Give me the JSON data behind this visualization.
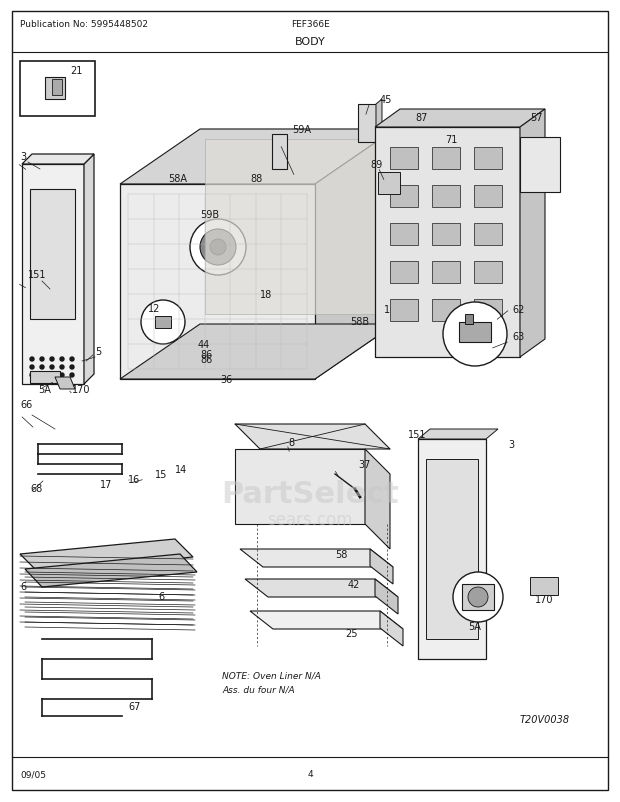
{
  "title": "BODY",
  "pub_no": "Publication No: 5995448502",
  "model": "FEF366E",
  "date": "09/05",
  "page": "4",
  "ref_code": "T20V0038",
  "fig_width": 6.2,
  "fig_height": 8.03,
  "dpi": 100,
  "bg_color": "#ffffff",
  "border_color": "#000000",
  "text_color": "#000000",
  "note_text": "NOTE: Oven Liner N/A\nAss. du four N/A",
  "watermark1": "PartSelect",
  "watermark2": "sears.com"
}
